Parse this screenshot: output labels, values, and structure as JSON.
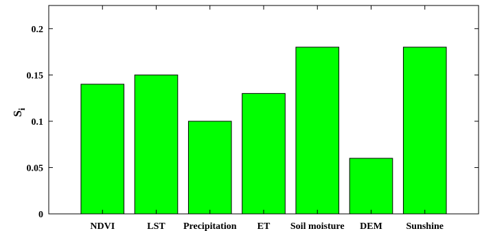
{
  "chart_data": {
    "type": "bar",
    "categories": [
      "NDVI",
      "LST",
      "Precipitation",
      "ET",
      "Soil moisture",
      "DEM",
      "Sunshine"
    ],
    "values": [
      0.14,
      0.15,
      0.1,
      0.13,
      0.18,
      0.06,
      0.18
    ],
    "yticks": [
      "0",
      "0.05",
      "0.1",
      "0.15",
      "0.2"
    ],
    "ylabel_main": "S",
    "ylabel_sub": "i",
    "xlabel": "",
    "ylim": [
      0,
      0.225
    ],
    "grid": false,
    "bar_color": "#00ff00",
    "bar_edge_color": "#000000"
  }
}
